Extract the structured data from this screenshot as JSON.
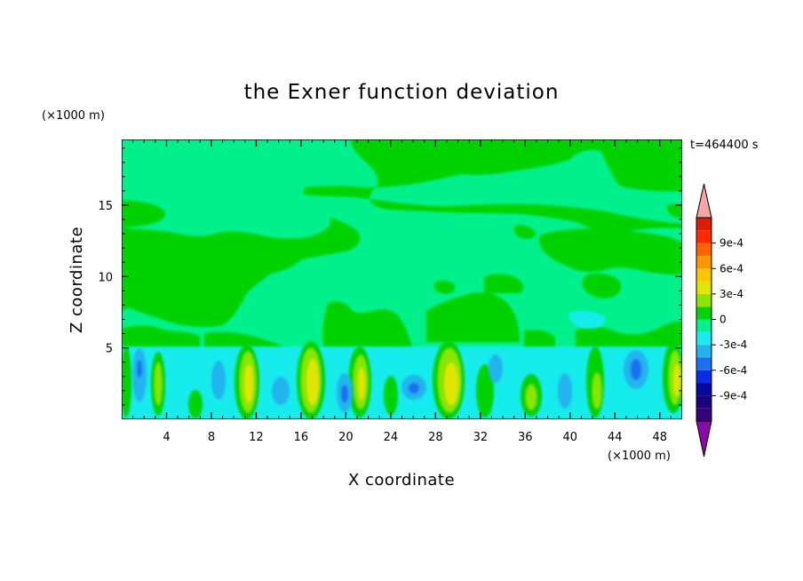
{
  "chart_data": {
    "type": "heatmap",
    "title": "the Exner function deviation",
    "xlabel": "X coordinate",
    "ylabel": "Z coordinate",
    "x_unit": "(×1000 m)",
    "y_unit": "(×1000 m)",
    "time_label": "t=464400 s",
    "xlim": [
      0,
      50
    ],
    "ylim": [
      0,
      19.6
    ],
    "x_ticks": [
      4,
      8,
      12,
      16,
      20,
      24,
      28,
      32,
      36,
      40,
      44,
      48
    ],
    "y_ticks": [
      5,
      10,
      15
    ],
    "colorbar": {
      "levels": [
        -0.0012,
        -0.00105,
        -0.0009,
        -0.00075,
        -0.0006,
        -0.00045,
        -0.0003,
        -0.00015,
        0,
        0.00015,
        0.0003,
        0.00045,
        0.0006,
        0.00075,
        0.0009,
        0.00105,
        0.0012
      ],
      "colors": [
        "#36007a",
        "#1d007e",
        "#06089e",
        "#0b2ce6",
        "#1c70ee",
        "#22b4ee",
        "#19ecec",
        "#00f08c",
        "#06d206",
        "#88e600",
        "#e0e600",
        "#ffc400",
        "#ff9600",
        "#ff6400",
        "#ff2a00",
        "#dc1e00"
      ],
      "under_color": "#8a0aa8",
      "over_color": "#f5a5a5",
      "tick_labels": [
        "9e-4",
        "6e-4",
        "3e-4",
        "0",
        "-3e-4",
        "-6e-4",
        "-9e-4"
      ],
      "tick_values": [
        0.0009,
        0.0006,
        0.0003,
        0,
        -0.0003,
        -0.0006,
        -0.0009
      ]
    }
  }
}
